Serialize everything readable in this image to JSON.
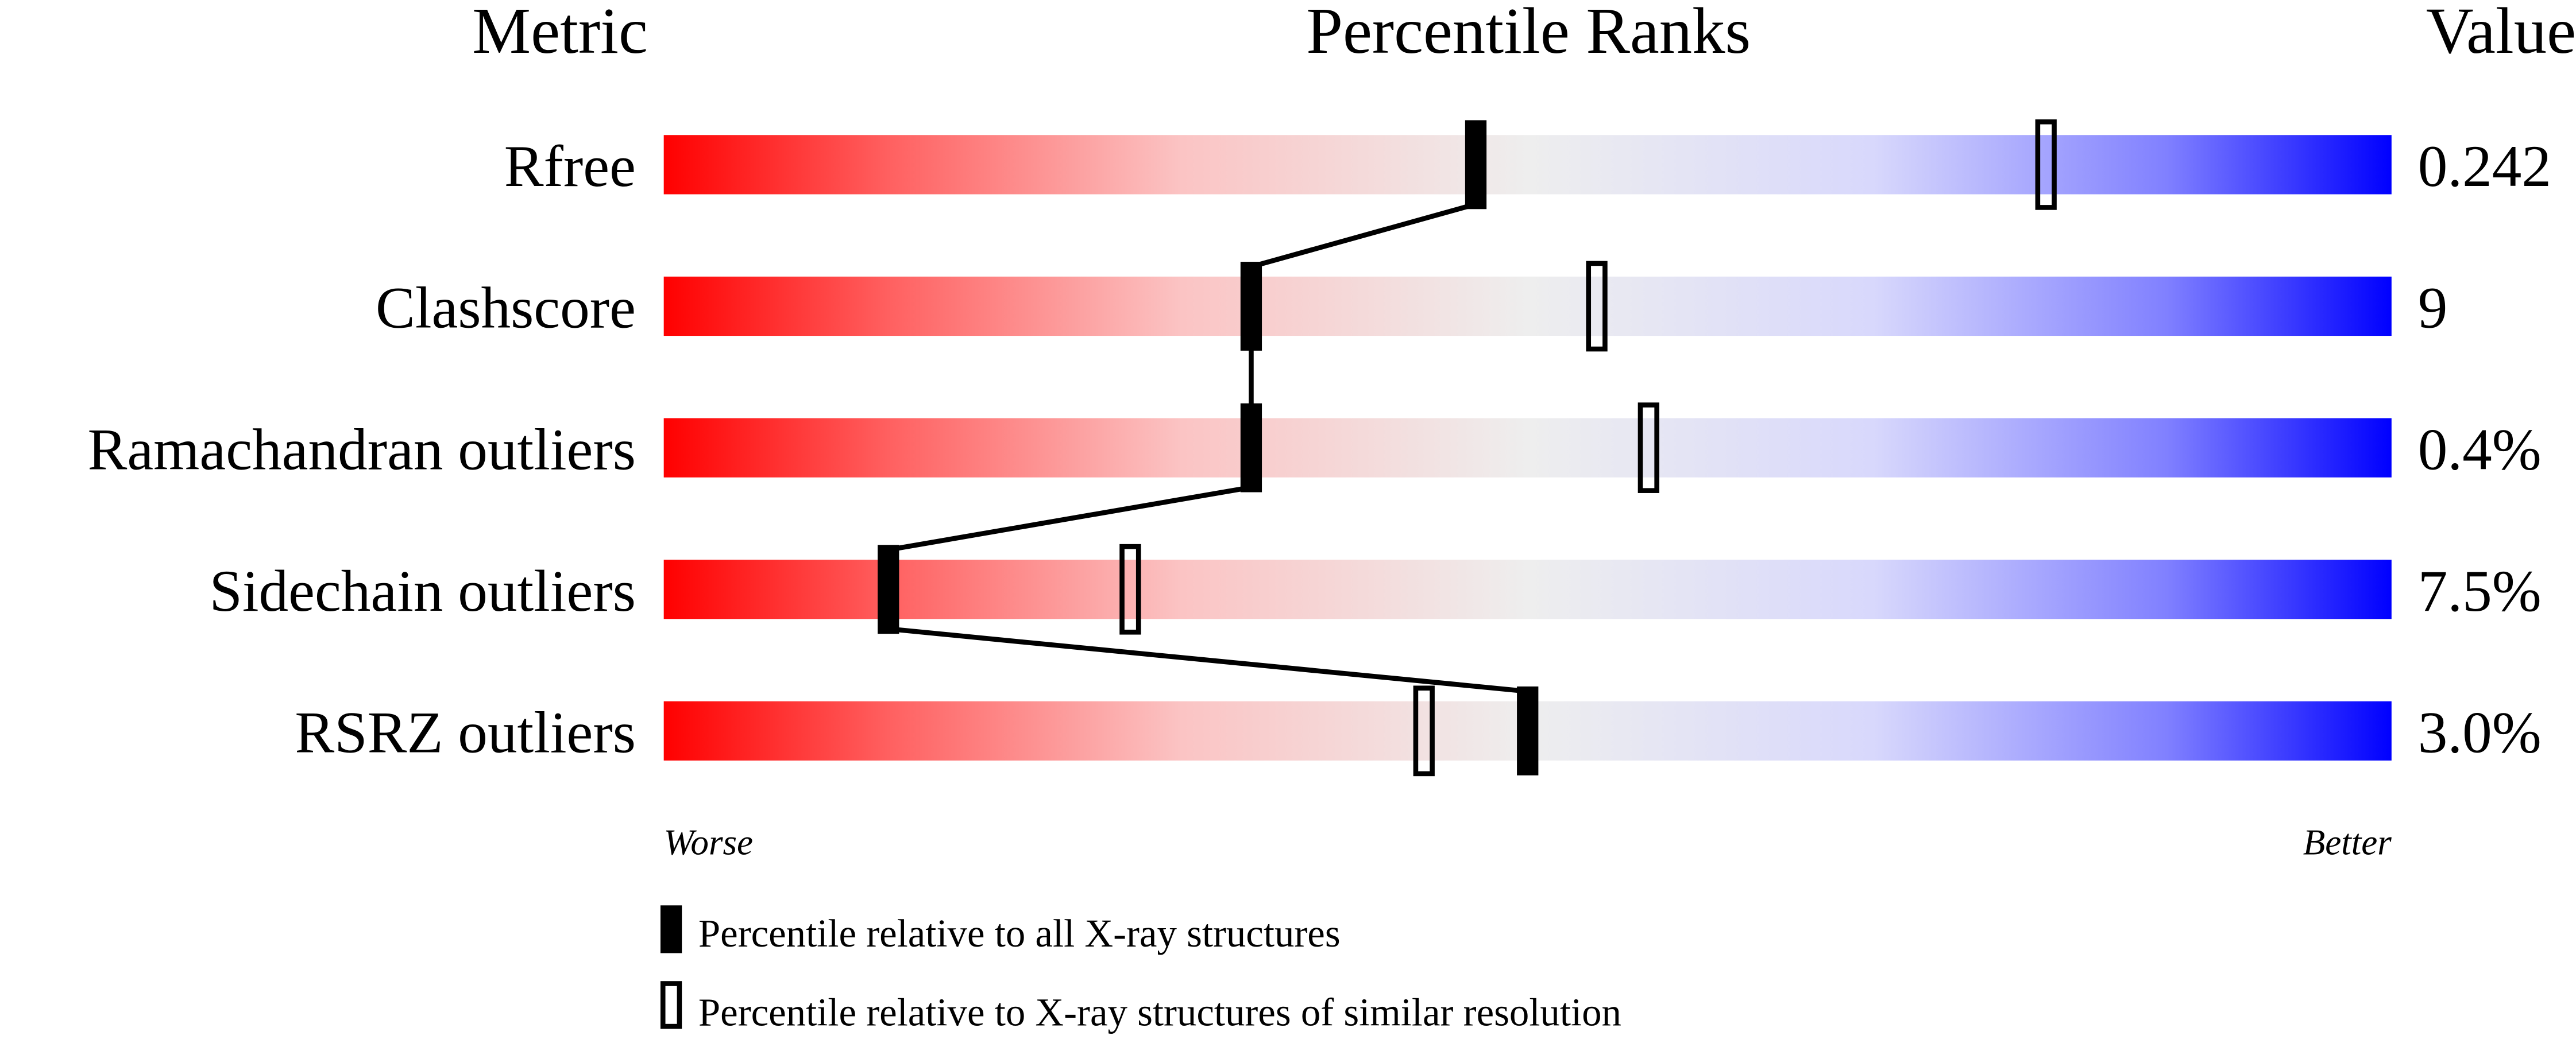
{
  "chart_data": {
    "type": "bar",
    "title": "Percentile Ranks",
    "column_headers": {
      "metric": "Metric",
      "ranks": "Percentile Ranks",
      "value": "Value"
    },
    "xlim": [
      0,
      100
    ],
    "axis_labels": {
      "left": "Worse",
      "right": "Better"
    },
    "metrics": [
      {
        "name": "Rfree",
        "value": "0.242",
        "percentile_all": 47,
        "percentile_similar": 80
      },
      {
        "name": "Clashscore",
        "value": "9",
        "percentile_all": 34,
        "percentile_similar": 54
      },
      {
        "name": "Ramachandran outliers",
        "value": "0.4%",
        "percentile_all": 34,
        "percentile_similar": 57
      },
      {
        "name": "Sidechain outliers",
        "value": "7.5%",
        "percentile_all": 13,
        "percentile_similar": 27
      },
      {
        "name": "RSRZ outliers",
        "value": "3.0%",
        "percentile_all": 50,
        "percentile_similar": 44
      }
    ],
    "legend": {
      "all": "Percentile relative to all X-ray structures",
      "similar": "Percentile relative to X-ray structures of similar resolution"
    },
    "colors": {
      "worse": "#ff0000",
      "middle": "#eeeeee",
      "better": "#0000ff",
      "marker": "#000000"
    }
  }
}
